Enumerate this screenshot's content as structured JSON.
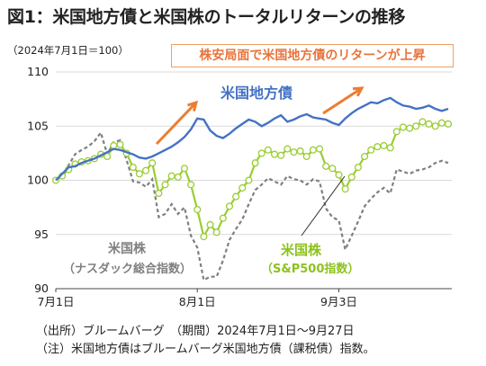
{
  "title": "図1：米国地方債と米国株のトータルリターンの推移",
  "unit_label": "（2024年7月1日＝100）",
  "callout": "株安局面で米国地方債のリターンが上昇",
  "source": "（出所）ブルームバーグ　（期間）2024年7月1日～9月27日",
  "note": "（注）米国地方債はブルームバーグ米国地方債（課税債）指数。",
  "colors": {
    "municipal": "#4472c4",
    "sp500_line": "#9acd32",
    "sp500_marker": "#9acd32",
    "nasdaq": "#7f7f7f",
    "grid": "#d9d9d9",
    "accent": "#ed7d31"
  },
  "chart_data": {
    "type": "line",
    "title": "",
    "xlabel": "",
    "ylabel": "",
    "ylim": [
      90,
      110
    ],
    "yticks": [
      90,
      95,
      100,
      105,
      110
    ],
    "xtick_labels": [
      "7月1日",
      "8月1日",
      "9月3日"
    ],
    "xtick_index": [
      0,
      22,
      44
    ],
    "grid": "horizontal",
    "series": [
      {
        "key": "municipal",
        "name": "米国地方債",
        "style": "solid",
        "values": [
          100.0,
          100.6,
          101.2,
          101.3,
          101.6,
          101.8,
          102.0,
          102.3,
          102.6,
          102.9,
          102.8,
          102.6,
          102.4,
          102.1,
          102.0,
          102.2,
          102.5,
          102.8,
          103.1,
          103.5,
          104.0,
          104.7,
          105.7,
          105.6,
          104.6,
          104.1,
          103.9,
          104.3,
          104.8,
          105.2,
          105.6,
          105.4,
          105.0,
          105.3,
          105.7,
          106.0,
          105.4,
          105.6,
          105.9,
          106.1,
          105.8,
          105.7,
          105.6,
          105.3,
          105.1,
          105.7,
          106.2,
          106.6,
          106.9,
          107.2,
          107.1,
          107.4,
          107.6,
          107.2,
          106.9,
          106.8,
          106.6,
          106.7,
          106.9,
          106.6,
          106.4,
          106.6
        ]
      },
      {
        "key": "sp500",
        "name": "米国株（S&P500指数）",
        "style": "markers",
        "values": [
          100.0,
          100.4,
          101.0,
          101.5,
          101.7,
          101.8,
          102.0,
          102.4,
          102.2,
          103.2,
          103.3,
          102.5,
          101.2,
          100.6,
          100.9,
          101.6,
          98.8,
          99.6,
          100.4,
          100.3,
          101.1,
          99.6,
          97.3,
          94.8,
          95.9,
          95.2,
          96.5,
          97.6,
          98.5,
          99.3,
          100.0,
          101.6,
          102.5,
          102.8,
          102.4,
          102.3,
          102.9,
          102.6,
          102.7,
          102.2,
          102.8,
          102.9,
          101.3,
          101.1,
          100.5,
          99.2,
          100.3,
          101.2,
          102.2,
          102.8,
          103.1,
          103.2,
          103.0,
          104.5,
          104.9,
          104.8,
          105.0,
          105.4,
          105.2,
          105.0,
          105.3,
          105.2
        ]
      },
      {
        "key": "nasdaq",
        "name": "米国株（ナスダック総合指数）",
        "style": "dashed",
        "values": [
          100.0,
          100.3,
          101.4,
          102.4,
          102.8,
          103.1,
          103.6,
          104.4,
          102.4,
          103.5,
          103.7,
          101.9,
          99.9,
          99.8,
          99.4,
          100.1,
          96.6,
          96.9,
          97.8,
          96.9,
          97.5,
          94.9,
          93.8,
          90.8,
          91.1,
          91.1,
          92.6,
          94.5,
          95.5,
          96.4,
          97.8,
          99.1,
          99.6,
          100.2,
          99.9,
          99.6,
          100.4,
          100.1,
          100.0,
          99.6,
          100.1,
          99.9,
          97.4,
          96.6,
          96.3,
          93.6,
          94.9,
          96.2,
          97.6,
          98.3,
          98.9,
          99.3,
          98.8,
          101.0,
          100.8,
          100.6,
          100.9,
          101.0,
          101.2,
          101.6,
          101.8,
          101.6
        ]
      }
    ],
    "annotations": [
      {
        "text": "米国地方債",
        "series": "municipal"
      },
      {
        "text": "米国株",
        "series": "nasdaq"
      },
      {
        "text": "（ナスダック総合指数）",
        "series": "nasdaq"
      },
      {
        "text": "米国株",
        "series": "sp500"
      },
      {
        "text": "（S&P500指数）",
        "series": "sp500"
      }
    ]
  }
}
